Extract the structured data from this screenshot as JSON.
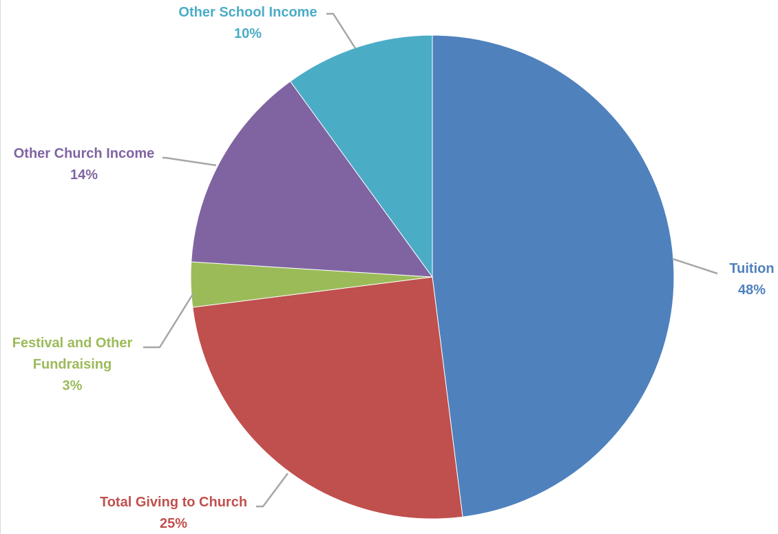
{
  "chart_data": {
    "type": "pie",
    "start_angle_deg": 0,
    "direction": "clockwise",
    "legend": "none",
    "data_labels": "outside-with-leader-lines",
    "slices": [
      {
        "label_lines": [
          "Tuition"
        ],
        "percent_label": "48%",
        "value": 48,
        "color": "#4F81BD"
      },
      {
        "label_lines": [
          "Total Giving to Church"
        ],
        "percent_label": "25%",
        "value": 25,
        "color": "#C0504D"
      },
      {
        "label_lines": [
          "Festival and Other",
          "Fundraising"
        ],
        "percent_label": "3%",
        "value": 3,
        "color": "#9BBB59"
      },
      {
        "label_lines": [
          "Other Church Income"
        ],
        "percent_label": "14%",
        "value": 14,
        "color": "#8064A2"
      },
      {
        "label_lines": [
          "Other School Income"
        ],
        "percent_label": "10%",
        "value": 10,
        "color": "#4BACC6"
      }
    ],
    "leader_line_color": "#A6A6A6"
  }
}
